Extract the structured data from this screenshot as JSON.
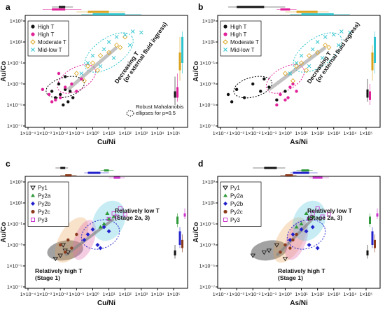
{
  "chart_data": [
    {
      "panel_label": "a",
      "type": "scatter",
      "xlabel": "Cu/Ni",
      "ylabel": "Au/Co",
      "x_scale": "log",
      "y_scale": "log",
      "xlim": [
        0.0001,
        100000
      ],
      "ylim": [
        1e-07,
        1000
      ],
      "x_ticks": [
        "1×10⁻⁴",
        "1×10⁻³",
        "1×10⁻²",
        "1×10⁻¹",
        "1×10⁰",
        "1×10¹",
        "1×10²",
        "1×10³",
        "1×10⁴",
        "1×10⁵"
      ],
      "y_ticks": [
        "1×10⁻⁷",
        "1×10⁻⁵",
        "1×10⁻³",
        "1×10⁻¹",
        "1×10¹",
        "1×10³"
      ],
      "legend_position": "top-left",
      "series": [
        {
          "name": "High T",
          "marker": "filled-circle",
          "color": "#111111",
          "points": [
            [
              0.01,
              0.0001
            ],
            [
              0.02,
              0.0003
            ],
            [
              0.005,
              5e-05
            ],
            [
              0.03,
              2e-05
            ],
            [
              0.008,
              0.001
            ],
            [
              0.04,
              0.0002
            ],
            [
              0.015,
              1e-05
            ],
            [
              0.003,
              0.0002
            ],
            [
              0.06,
              5e-05
            ],
            [
              0.02,
              0.005
            ]
          ]
        },
        {
          "name": "High T",
          "marker": "filled-circle",
          "color": "#e0219a",
          "points": [
            [
              0.002,
              0.0001
            ],
            [
              0.005,
              3e-05
            ],
            [
              0.02,
              0.0005
            ],
            [
              0.05,
              0.001
            ],
            [
              0.1,
              0.0002
            ],
            [
              0.003,
              2e-05
            ],
            [
              0.2,
              0.003
            ],
            [
              0.01,
              5e-05
            ],
            [
              0.008,
              0.01
            ],
            [
              0.0008,
              0.0003
            ]
          ]
        },
        {
          "name": "Moderate T",
          "marker": "open-diamond",
          "color": "#d9a21b",
          "points": [
            [
              0.1,
              0.01
            ],
            [
              0.5,
              0.05
            ],
            [
              1,
              0.1
            ],
            [
              3,
              0.5
            ],
            [
              10,
              1
            ],
            [
              30,
              5
            ],
            [
              0.3,
              0.002
            ],
            [
              2,
              0.02
            ],
            [
              50,
              3
            ],
            [
              100,
              30
            ]
          ]
        },
        {
          "name": "Mid-low T",
          "marker": "x",
          "color": "#2fc4cf",
          "points": [
            [
              0.5,
              0.1
            ],
            [
              1,
              0.5
            ],
            [
              5,
              2
            ],
            [
              10,
              10
            ],
            [
              30,
              30
            ],
            [
              100,
              50
            ],
            [
              300,
              100
            ],
            [
              1000,
              80
            ],
            [
              3,
              0.05
            ],
            [
              20,
              0.3
            ],
            [
              200,
              5
            ],
            [
              0.2,
              0.01
            ]
          ]
        }
      ],
      "annotations": [
        "Decreasing T\n(or external fluid ingress)",
        "Robust Mahalanobis\nellipses for p=0.5"
      ]
    },
    {
      "panel_label": "b",
      "type": "scatter",
      "xlabel": "As/Ni",
      "ylabel": "Au/Co",
      "x_scale": "log",
      "y_scale": "log",
      "xlim": [
        0.0001,
        100000
      ],
      "ylim": [
        1e-07,
        1000
      ],
      "x_ticks": [
        "1×10⁻⁴",
        "1×10⁻³",
        "1×10⁻²",
        "1×10⁻¹",
        "1×10⁰",
        "1×10¹",
        "1×10²",
        "1×10³",
        "1×10⁴",
        "1×10⁵"
      ],
      "y_ticks": [
        "1×10⁻⁷",
        "1×10⁻⁵",
        "1×10⁻³",
        "1×10⁻¹",
        "1×10¹",
        "1×10³"
      ],
      "legend_position": "top-left",
      "series": [
        {
          "name": "High T",
          "marker": "filled-circle",
          "color": "#111111",
          "points": [
            [
              0.0003,
              0.0001
            ],
            [
              0.001,
              0.0003
            ],
            [
              0.003,
              5e-05
            ],
            [
              0.01,
              0.001
            ],
            [
              0.03,
              0.0002
            ],
            [
              0.1,
              0.0005
            ],
            [
              0.3,
              3e-05
            ],
            [
              1,
              0.0002
            ],
            [
              0.0005,
              2e-05
            ],
            [
              0.05,
              0.003
            ]
          ]
        },
        {
          "name": "High T",
          "marker": "filled-circle",
          "color": "#e0219a",
          "points": [
            [
              0.5,
              0.0001
            ],
            [
              1,
              3e-05
            ],
            [
              2,
              0.0005
            ],
            [
              0.3,
              1e-05
            ],
            [
              3,
              0.001
            ],
            [
              1.5,
              5e-05
            ],
            [
              5,
              0.0002
            ]
          ]
        },
        {
          "name": "Moderate T",
          "marker": "open-diamond",
          "color": "#d9a21b",
          "points": [
            [
              1,
              0.01
            ],
            [
              5,
              0.05
            ],
            [
              10,
              0.1
            ],
            [
              30,
              0.5
            ],
            [
              100,
              1
            ],
            [
              300,
              5
            ],
            [
              3,
              0.002
            ],
            [
              20,
              0.02
            ],
            [
              500,
              3
            ]
          ]
        },
        {
          "name": "Mid-low T",
          "marker": "x",
          "color": "#2fc4cf",
          "points": [
            [
              5,
              0.1
            ],
            [
              10,
              0.5
            ],
            [
              50,
              2
            ],
            [
              100,
              10
            ],
            [
              300,
              30
            ],
            [
              1000,
              50
            ],
            [
              3000,
              100
            ],
            [
              10000,
              80
            ],
            [
              30,
              0.05
            ],
            [
              200,
              0.3
            ],
            [
              2000,
              5
            ],
            [
              2,
              0.01
            ]
          ]
        }
      ],
      "annotations": [
        "Decreasing T\n(or external fluid ingress)"
      ]
    },
    {
      "panel_label": "c",
      "type": "scatter",
      "xlabel": "Cu/Ni",
      "ylabel": "Au/Co",
      "x_scale": "log",
      "y_scale": "log",
      "xlim": [
        0.0001,
        100000
      ],
      "ylim": [
        1e-07,
        1000
      ],
      "x_ticks": [
        "1×10⁻⁴",
        "1×10⁻³",
        "1×10⁻²",
        "1×10⁻¹",
        "1×10⁰",
        "1×10¹",
        "1×10²",
        "1×10³",
        "1×10⁴",
        "1×10⁵"
      ],
      "y_ticks": [
        "1×10⁻⁷",
        "1×10⁻⁵",
        "1×10⁻³",
        "1×10⁻¹",
        "1×10¹",
        "1×10³"
      ],
      "legend_position": "top-left",
      "series": [
        {
          "name": "Py1",
          "marker": "open-triangle-down",
          "color": "#111111",
          "points": [
            [
              0.01,
              0.0001
            ],
            [
              0.02,
              0.0003
            ],
            [
              0.005,
              5e-05
            ],
            [
              0.03,
              0.0002
            ],
            [
              0.015,
              0.001
            ]
          ]
        },
        {
          "name": "Py2a",
          "marker": "filled-triangle-up",
          "color": "#2e9a3a",
          "points": [
            [
              5,
              0.1
            ],
            [
              10,
              0.3
            ],
            [
              20,
              0.5
            ],
            [
              3,
              0.05
            ],
            [
              8,
              1
            ]
          ]
        },
        {
          "name": "Py2b",
          "marker": "filled-diamond",
          "color": "#2222cc",
          "points": [
            [
              0.5,
              0.01
            ],
            [
              1,
              0.03
            ],
            [
              2,
              0.001
            ],
            [
              5,
              0.05
            ],
            [
              0.3,
              0.003
            ],
            [
              3,
              0.0005
            ],
            [
              10,
              0.02
            ]
          ]
        },
        {
          "name": "Py2c",
          "marker": "filled-circle",
          "color": "#8b3a1a",
          "points": [
            [
              0.01,
              0.001
            ],
            [
              0.03,
              0.003
            ],
            [
              0.1,
              0.01
            ],
            [
              0.05,
              0.0005
            ],
            [
              0.02,
              0.0002
            ]
          ]
        },
        {
          "name": "Py3",
          "marker": "open-square",
          "color": "#cc33cc",
          "points": [
            [
              20,
              1
            ],
            [
              50,
              3
            ],
            [
              10,
              0.3
            ],
            [
              30,
              0.5
            ],
            [
              100,
              0.8
            ]
          ]
        }
      ],
      "annotations": [
        "Relatively low T\n(Stage 2a, 3)",
        "Relatively high T\n(Stage 1)"
      ]
    },
    {
      "panel_label": "d",
      "type": "scatter",
      "xlabel": "As/Ni",
      "ylabel": "Au/Co",
      "x_scale": "log",
      "y_scale": "log",
      "xlim": [
        0.0001,
        100000
      ],
      "ylim": [
        1e-07,
        1000
      ],
      "x_ticks": [
        "1×10⁻⁴",
        "1×10⁻³",
        "1×10⁻²",
        "1×10⁻¹",
        "1×10⁰",
        "1×10¹",
        "1×10²",
        "1×10³",
        "1×10⁴",
        "1×10⁵"
      ],
      "y_ticks": [
        "1×10⁻⁷",
        "1×10⁻⁵",
        "1×10⁻³",
        "1×10⁻¹",
        "1×10¹",
        "1×10³"
      ],
      "legend_position": "top-left",
      "series": [
        {
          "name": "Py1",
          "marker": "open-triangle-down",
          "color": "#111111",
          "points": [
            [
              0.01,
              0.0001
            ],
            [
              0.1,
              0.0003
            ],
            [
              1,
              5e-05
            ],
            [
              0.05,
              0.0002
            ],
            [
              0.3,
              0.001
            ]
          ]
        },
        {
          "name": "Py2a",
          "marker": "filled-triangle-up",
          "color": "#2e9a3a",
          "points": [
            [
              10,
              0.1
            ],
            [
              30,
              0.3
            ],
            [
              50,
              0.5
            ],
            [
              5,
              0.05
            ],
            [
              20,
              1
            ]
          ]
        },
        {
          "name": "Py2b",
          "marker": "filled-diamond",
          "color": "#2222cc",
          "points": [
            [
              3,
              0.01
            ],
            [
              10,
              0.03
            ],
            [
              30,
              0.001
            ],
            [
              50,
              0.05
            ],
            [
              2,
              0.003
            ],
            [
              100,
              0.0005
            ],
            [
              20,
              0.02
            ]
          ]
        },
        {
          "name": "Py2c",
          "marker": "filled-circle",
          "color": "#8b3a1a",
          "points": [
            [
              1,
              0.001
            ],
            [
              3,
              0.003
            ],
            [
              5,
              0.01
            ],
            [
              2,
              0.0005
            ],
            [
              0.5,
              0.0002
            ]
          ]
        },
        {
          "name": "Py3",
          "marker": "open-square",
          "color": "#cc33cc",
          "points": [
            [
              50,
              1
            ],
            [
              100,
              3
            ],
            [
              30,
              0.3
            ],
            [
              200,
              0.5
            ],
            [
              500,
              0.8
            ]
          ]
        }
      ],
      "annotations": [
        "Relatively low T\n(Stage 2a, 3)",
        "Relatively high T\n(Stage 1)"
      ]
    }
  ]
}
